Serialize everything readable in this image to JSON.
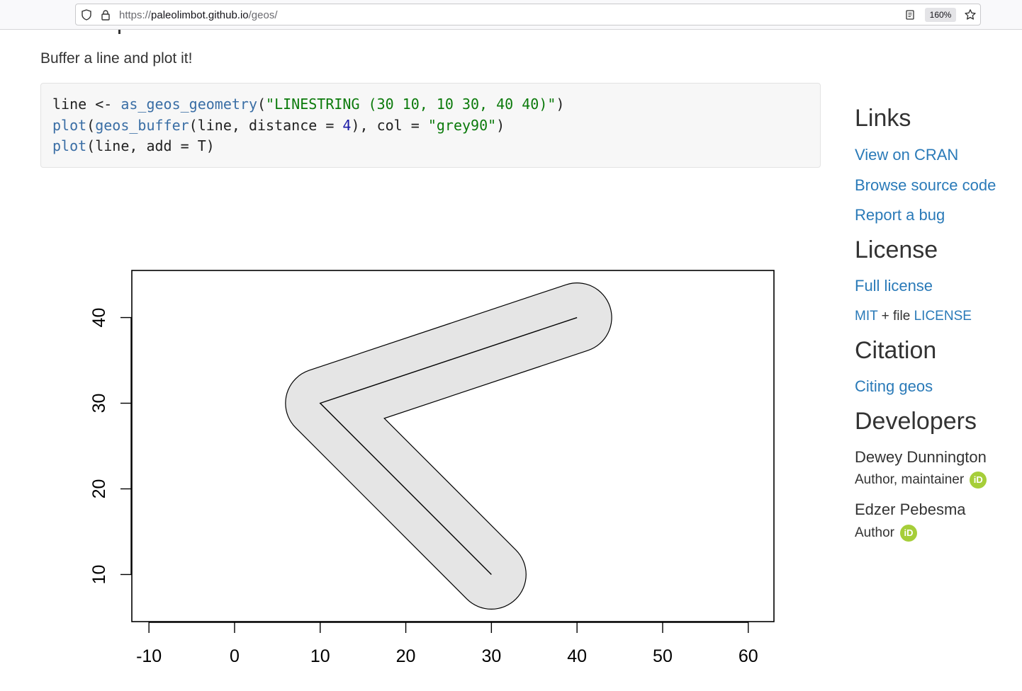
{
  "browser": {
    "url_prefix": "https://",
    "url_host": "paleolimbot.github.io",
    "url_path": "/geos/",
    "zoom": "160%"
  },
  "main": {
    "lead_text": "Buffer a line and plot it!",
    "code": {
      "line1": {
        "a": "line <- ",
        "fn": "as_geos_geometry",
        "b": "(",
        "str": "\"LINESTRING (30 10, 10 30, 40 40)\"",
        "c": ")"
      },
      "line2": {
        "fn1": "plot",
        "b1": "(",
        "fn2": "geos_buffer",
        "b2": "(line, distance = ",
        "num": "4",
        "b3": "), col = ",
        "str": "\"grey90\"",
        "c": ")"
      },
      "line3": {
        "fn": "plot",
        "b": "(line, add = T)"
      }
    }
  },
  "chart_data": {
    "type": "line",
    "title": "",
    "xlabel": "",
    "ylabel": "",
    "xlim": [
      -12,
      63
    ],
    "ylim": [
      4.5,
      45.5
    ],
    "x_ticks": [
      "-10",
      "0",
      "10",
      "20",
      "30",
      "40",
      "50",
      "60"
    ],
    "y_ticks": [
      "10",
      "20",
      "30",
      "40"
    ],
    "series": [
      {
        "x": [
          30,
          10,
          40
        ],
        "y": [
          10,
          30,
          40
        ],
        "color": "#000000"
      }
    ],
    "buffer": {
      "distance": 4,
      "fill": "#e5e5e5"
    },
    "grid": false,
    "legend": "none"
  },
  "sidebar": {
    "links_heading": "Links",
    "links": [
      "View on CRAN",
      "Browse source code",
      "Report a bug"
    ],
    "license_heading": "License",
    "full_license": "Full license",
    "license_mit": "MIT",
    "license_plus": " + file ",
    "license_file": "LICENSE",
    "citation_heading": "Citation",
    "citing": "Citing geos",
    "developers_heading": "Developers",
    "developers": [
      {
        "name": "Dewey Dunnington",
        "role": "Author, maintainer"
      },
      {
        "name": "Edzer Pebesma",
        "role": "Author"
      }
    ],
    "orcid_label": "iD",
    "orcid_color": "#a6ce39",
    "link_color": "#2a7ab8"
  }
}
